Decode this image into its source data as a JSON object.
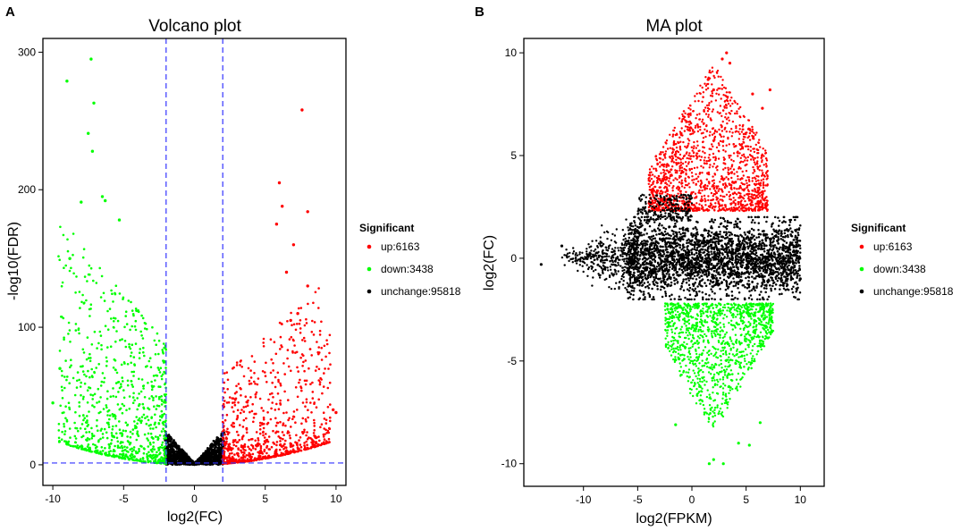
{
  "colors": {
    "up": "#ff0000",
    "down": "#00ff00",
    "unchange": "#000000",
    "threshold": "#3333ff"
  },
  "chart_data": [
    {
      "panel_letter": "A",
      "type": "scatter",
      "title": "Volcano plot",
      "xlabel": "log2(FC)",
      "ylabel": "-log10(FDR)",
      "xlim": [
        -10.7,
        10.7
      ],
      "ylim": [
        -15,
        310
      ],
      "xticks": [
        -10,
        -5,
        0,
        5,
        10
      ],
      "yticks": [
        0,
        100,
        200,
        300
      ],
      "thresholds": {
        "x": [
          -2,
          2
        ],
        "y": [
          1.3
        ]
      },
      "legend": {
        "title": "Significant",
        "entries": [
          {
            "series": "up",
            "label": "up:6163",
            "color": "#ff0000"
          },
          {
            "series": "down",
            "label": "down:3438",
            "color": "#00ff00"
          },
          {
            "series": "unchange",
            "label": "unchange:95818",
            "color": "#000000"
          }
        ]
      },
      "series": [
        {
          "name": "up",
          "count": 6163,
          "color": "#ff0000",
          "highlight_points": [
            [
              7.6,
              258
            ],
            [
              6.0,
              205
            ],
            [
              8.0,
              184
            ],
            [
              6.2,
              188
            ],
            [
              5.8,
              175
            ],
            [
              7.0,
              160
            ],
            [
              6.5,
              140
            ],
            [
              8.0,
              130
            ],
            [
              9.8,
              40
            ],
            [
              10.0,
              38
            ],
            [
              6.8,
              105
            ],
            [
              7.3,
              110
            ]
          ]
        },
        {
          "name": "down",
          "count": 3438,
          "color": "#00ff00",
          "highlight_points": [
            [
              -7.3,
              295
            ],
            [
              -9.0,
              279
            ],
            [
              -7.1,
              263
            ],
            [
              -7.5,
              241
            ],
            [
              -7.2,
              228
            ],
            [
              -6.5,
              195
            ],
            [
              -6.3,
              192
            ],
            [
              -8.0,
              191
            ],
            [
              -5.3,
              178
            ],
            [
              -9.5,
              70
            ],
            [
              -10.0,
              45
            ],
            [
              -8.8,
              150
            ]
          ]
        },
        {
          "name": "unchange",
          "count": 95818,
          "color": "#000000"
        }
      ]
    },
    {
      "panel_letter": "B",
      "type": "scatter",
      "title": "MA plot",
      "xlabel": "log2(FPKM)",
      "ylabel": "log2(FC)",
      "xlim": [
        -15.5,
        12.2
      ],
      "ylim": [
        -11.1,
        10.7
      ],
      "xticks": [
        -10,
        -5,
        0,
        5,
        10
      ],
      "yticks": [
        -10,
        -5,
        0,
        5,
        10
      ],
      "legend": {
        "title": "Significant",
        "entries": [
          {
            "series": "up",
            "label": "up:6163",
            "color": "#ff0000"
          },
          {
            "series": "down",
            "label": "down:3438",
            "color": "#00ff00"
          },
          {
            "series": "unchange",
            "label": "unchange:95818",
            "color": "#000000"
          }
        ]
      },
      "series": [
        {
          "name": "up",
          "count": 6163,
          "color": "#ff0000",
          "highlight_points": [
            [
              3.2,
              10.0
            ],
            [
              2.8,
              9.7
            ],
            [
              3.5,
              9.5
            ],
            [
              7.2,
              8.2
            ],
            [
              1.5,
              8.7
            ],
            [
              5.6,
              8.0
            ],
            [
              6.5,
              7.3
            ],
            [
              -0.3,
              7.0
            ],
            [
              2.0,
              8.2
            ]
          ]
        },
        {
          "name": "down",
          "count": 3438,
          "color": "#00ff00",
          "highlight_points": [
            [
              1.6,
              -10.0
            ],
            [
              2.9,
              -10.0
            ],
            [
              2.0,
              -9.8
            ],
            [
              4.3,
              -9.0
            ],
            [
              5.3,
              -9.1
            ],
            [
              -1.5,
              -8.1
            ],
            [
              6.3,
              -8.0
            ]
          ]
        },
        {
          "name": "unchange",
          "count": 95818,
          "color": "#000000",
          "highlight_points": [
            [
              -13.9,
              -0.3
            ],
            [
              -12.0,
              0.6
            ],
            [
              10.0,
              -1.0
            ]
          ]
        }
      ]
    }
  ]
}
